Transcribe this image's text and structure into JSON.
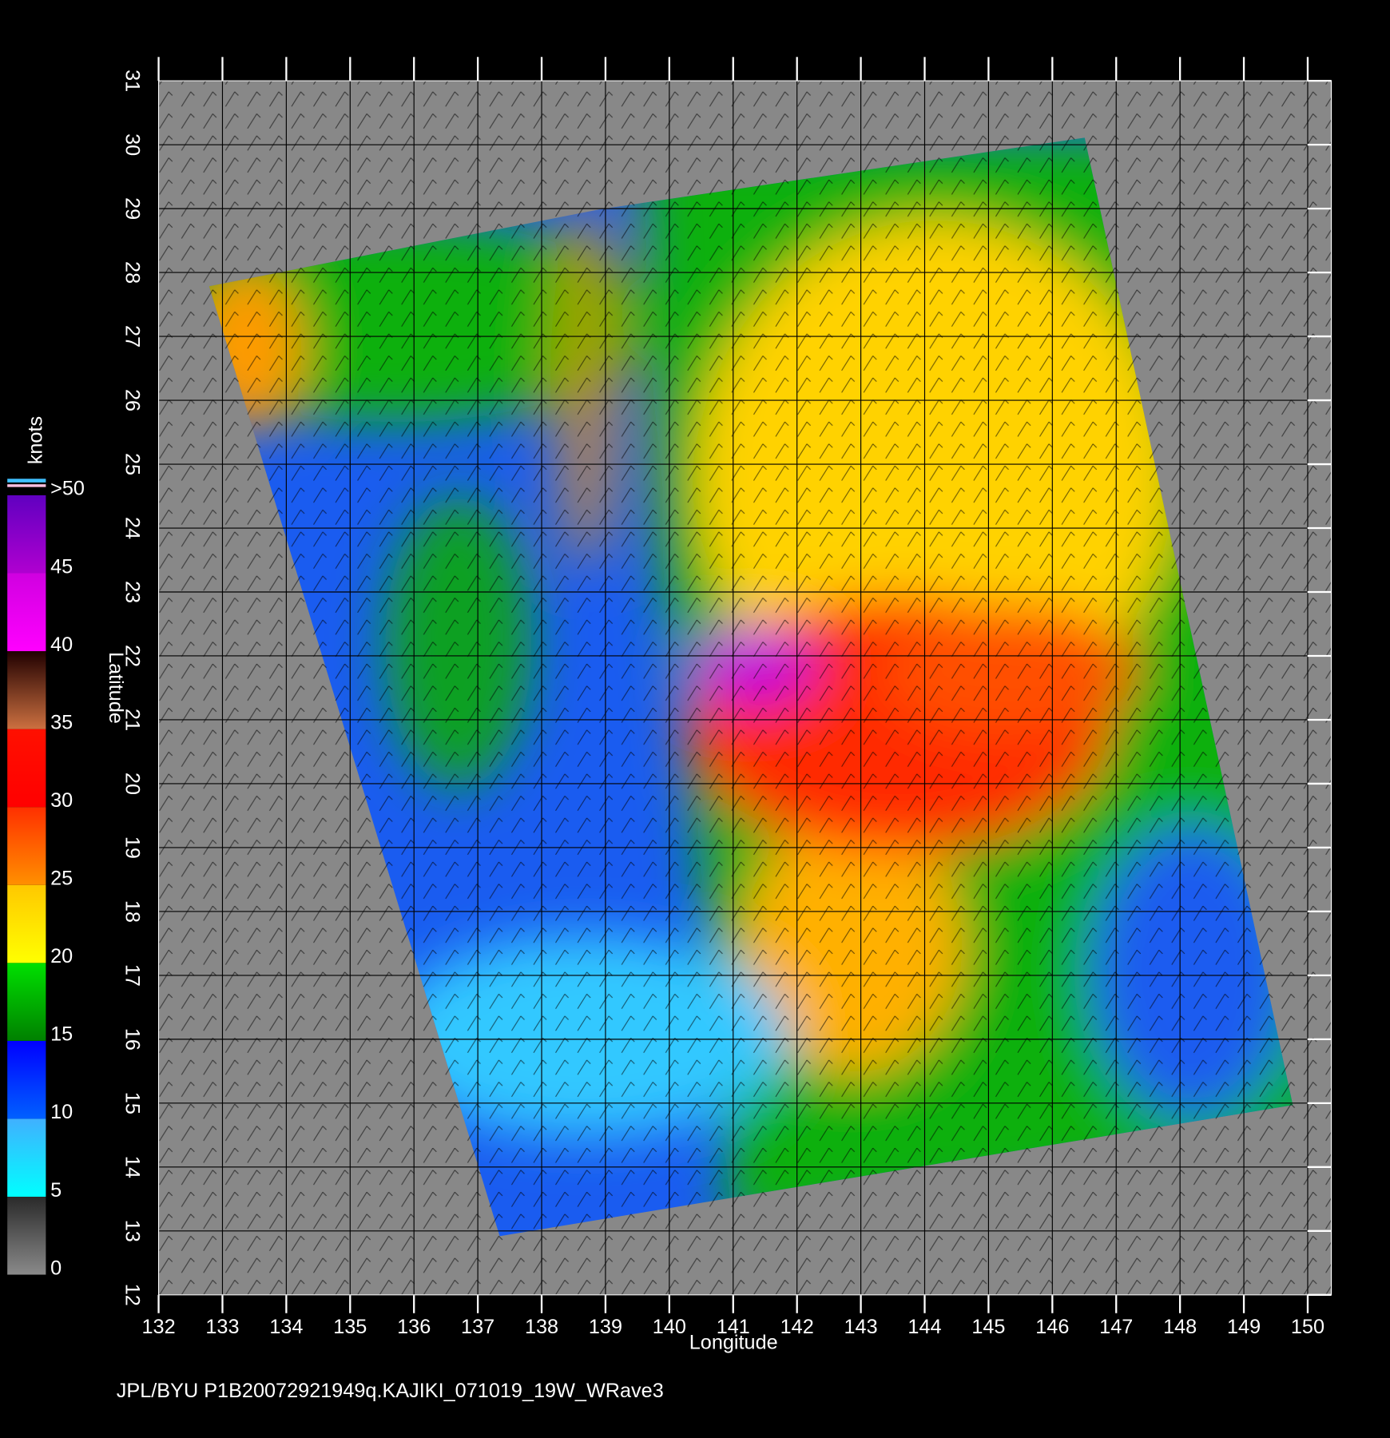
{
  "map": {
    "title": "JPL/BYU  P1B20072921949q.KAJIKI_071019_19W_WRave3",
    "xlabel": "Longitude",
    "ylabel": "Latitude",
    "xlim": [
      132,
      150.37
    ],
    "ylim": [
      12,
      31
    ],
    "xticks": [
      132,
      133,
      134,
      135,
      136,
      137,
      138,
      139,
      140,
      141,
      142,
      143,
      144,
      145,
      146,
      147,
      148,
      149,
      150
    ],
    "yticks": [
      12,
      13,
      14,
      15,
      16,
      17,
      18,
      19,
      20,
      21,
      22,
      23,
      24,
      25,
      26,
      27,
      28,
      29,
      30,
      31
    ],
    "grid": true
  },
  "colorbar": {
    "label": "knots",
    "lim": [
      0,
      50
    ],
    "ticks": [
      0,
      5,
      10,
      15,
      20,
      25,
      30,
      35,
      40,
      45,
      {
        "value": 50,
        "label": ">50"
      }
    ],
    "colors": [
      [
        "#8a8a8a",
        "#2a2a2a"
      ],
      [
        "#00ffff",
        "#40b0ff"
      ],
      [
        "#0060ff",
        "#0000ff"
      ],
      [
        "#008000",
        "#00e000"
      ],
      [
        "#ffff00",
        "#ffc800"
      ],
      [
        "#ff9000",
        "#ff3000"
      ],
      [
        "#ff0000",
        "#ff1000"
      ],
      [
        "#cc7040",
        "#200000"
      ],
      [
        "#ff00ff",
        "#d000e0"
      ],
      [
        "#b000d0",
        "#6000c0"
      ]
    ]
  }
}
